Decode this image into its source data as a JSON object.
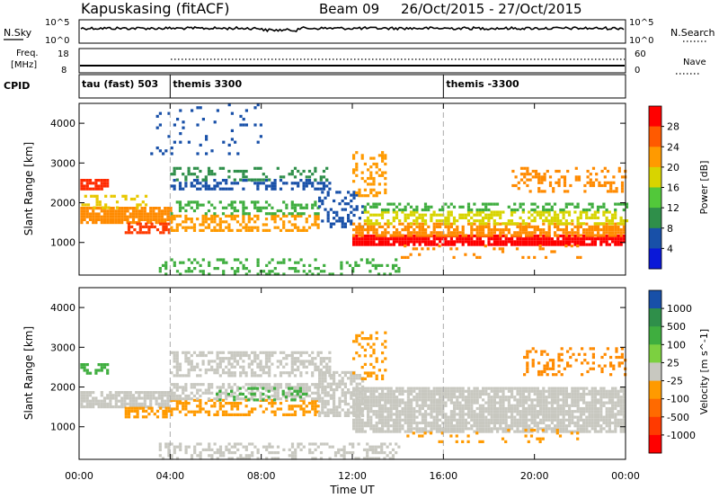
{
  "header": {
    "station": "Kapuskasing (fitACF)",
    "beam": "Beam 09",
    "dates": "26/Oct/2015 - 27/Oct/2015"
  },
  "noise_panel": {
    "left_label": "N.Sky",
    "right_label": "N.Search",
    "left_ticks": [
      "10^5",
      "10^0"
    ],
    "right_ticks": [
      "10^5",
      "10^0"
    ]
  },
  "freq_panel": {
    "left_label": "Freq.",
    "left_unit": "[MHz]",
    "left_ticks": [
      "18",
      "8"
    ],
    "right_label": "Nave",
    "right_ticks": [
      "60",
      "0"
    ]
  },
  "cpid_panel": {
    "label": "CPID",
    "segments": [
      {
        "label": "tau (fast) 503",
        "start_hour": 0
      },
      {
        "label": "themis 3300",
        "start_hour": 4
      },
      {
        "label": "themis -3300",
        "start_hour": 16
      }
    ]
  },
  "chart_data": {
    "type": "heatmap",
    "x_axis": {
      "label": "Time UT",
      "range_hours": [
        0,
        24
      ],
      "ticks": [
        {
          "hour": 0,
          "label": "00:00"
        },
        {
          "hour": 4,
          "label": "04:00"
        },
        {
          "hour": 8,
          "label": "08:00"
        },
        {
          "hour": 12,
          "label": "12:00"
        },
        {
          "hour": 16,
          "label": "16:00"
        },
        {
          "hour": 20,
          "label": "20:00"
        },
        {
          "hour": 24,
          "label": "00:00"
        }
      ]
    },
    "dashed_marks_hours": [
      4,
      16
    ],
    "panels": [
      {
        "id": "power",
        "ylabel": "Slant Range [km]",
        "yrange_km": [
          180,
          4500
        ],
        "yticks": [
          1000,
          2000,
          3000,
          4000
        ],
        "colorbar": {
          "title": "Power [dB]",
          "labels": [
            "28",
            "24",
            "20",
            "16",
            "12",
            "8",
            "4"
          ],
          "colors": [
            "#ff0000",
            "#ff5a00",
            "#ff9a00",
            "#d8d400",
            "#52c83a",
            "#2f8f4a",
            "#1850a8",
            "#0a18d8"
          ]
        },
        "bands": [
          {
            "h0": 0.05,
            "h1": 4.0,
            "r0": 1500,
            "r1": 1900,
            "color": "#ff8a00",
            "density": 0.85
          },
          {
            "h0": 0.05,
            "h1": 1.3,
            "r0": 2350,
            "r1": 2600,
            "color": "#ff2a00",
            "density": 0.8
          },
          {
            "h0": 0.1,
            "h1": 3.0,
            "r0": 1900,
            "r1": 2200,
            "color": "#e8c800",
            "density": 0.35
          },
          {
            "h0": 2.0,
            "h1": 4.0,
            "r0": 1250,
            "r1": 1500,
            "color": "#ff3a00",
            "density": 0.7
          },
          {
            "h0": 4.0,
            "h1": 10.5,
            "r0": 1300,
            "r1": 1700,
            "color": "#ff9a00",
            "density": 0.5
          },
          {
            "h0": 4.0,
            "h1": 10.5,
            "r0": 1700,
            "r1": 2050,
            "color": "#3fae3f",
            "density": 0.35
          },
          {
            "h0": 4.0,
            "h1": 11.0,
            "r0": 2350,
            "r1": 2600,
            "color": "#1850a8",
            "density": 0.45
          },
          {
            "h0": 4.0,
            "h1": 11.0,
            "r0": 2600,
            "r1": 2900,
            "color": "#2f8f4a",
            "density": 0.25
          },
          {
            "h0": 10.5,
            "h1": 12.5,
            "r0": 1400,
            "r1": 2300,
            "color": "#1850a8",
            "density": 0.35
          },
          {
            "h0": 12.0,
            "h1": 24.0,
            "r0": 950,
            "r1": 1200,
            "color": "#ff0000",
            "density": 0.9
          },
          {
            "h0": 12.0,
            "h1": 24.0,
            "r0": 1200,
            "r1": 1500,
            "color": "#ff8a00",
            "density": 0.7
          },
          {
            "h0": 12.5,
            "h1": 24.0,
            "r0": 1500,
            "r1": 1800,
            "color": "#d8d400",
            "density": 0.5
          },
          {
            "h0": 12.5,
            "h1": 24.0,
            "r0": 1800,
            "r1": 2000,
            "color": "#3fae3f",
            "density": 0.4
          },
          {
            "h0": 12.0,
            "h1": 13.5,
            "r0": 2200,
            "r1": 3300,
            "color": "#ff9a00",
            "density": 0.35
          },
          {
            "h0": 19.0,
            "h1": 24.0,
            "r0": 2300,
            "r1": 2900,
            "color": "#ff8a00",
            "density": 0.25
          },
          {
            "h0": 3.5,
            "h1": 14.0,
            "r0": 200,
            "r1": 600,
            "color": "#3fae3f",
            "density": 0.25
          },
          {
            "h0": 14.0,
            "h1": 22.0,
            "r0": 600,
            "r1": 950,
            "color": "#ff8a00",
            "density": 0.1
          },
          {
            "h0": 3.0,
            "h1": 8.0,
            "r0": 3200,
            "r1": 4500,
            "color": "#1850a8",
            "density": 0.06
          }
        ]
      },
      {
        "id": "velocity",
        "ylabel": "Slant Range [km]",
        "yrange_km": [
          180,
          4500
        ],
        "yticks": [
          1000,
          2000,
          3000,
          4000
        ],
        "colorbar": {
          "title": "Velocity [m s^-1]",
          "labels": [
            "1000",
            "500",
            "100",
            "25",
            "-25",
            "-100",
            "-500",
            "-1000"
          ],
          "colors": [
            "#1850a8",
            "#2f8f4a",
            "#3fae3f",
            "#7cd040",
            "#c8c8c0",
            "#ff9a00",
            "#ff6a00",
            "#ff3a00",
            "#ff0000"
          ]
        },
        "bands": [
          {
            "h0": 0.05,
            "h1": 4.0,
            "r0": 1500,
            "r1": 1900,
            "color": "#c8c8c0",
            "density": 0.85
          },
          {
            "h0": 0.05,
            "h1": 1.3,
            "r0": 2350,
            "r1": 2600,
            "color": "#3fae3f",
            "density": 0.6
          },
          {
            "h0": 2.0,
            "h1": 4.0,
            "r0": 1250,
            "r1": 1500,
            "color": "#ff9a00",
            "density": 0.6
          },
          {
            "h0": 4.0,
            "h1": 10.5,
            "r0": 1300,
            "r1": 1700,
            "color": "#ff9a00",
            "density": 0.4
          },
          {
            "h0": 4.0,
            "h1": 10.5,
            "r0": 1700,
            "r1": 2100,
            "color": "#c8c8c0",
            "density": 0.6
          },
          {
            "h0": 4.0,
            "h1": 11.0,
            "r0": 2300,
            "r1": 2900,
            "color": "#c8c8c0",
            "density": 0.5
          },
          {
            "h0": 10.5,
            "h1": 12.5,
            "r0": 1300,
            "r1": 2400,
            "color": "#c8c8c0",
            "density": 0.6
          },
          {
            "h0": 12.0,
            "h1": 24.0,
            "r0": 850,
            "r1": 2000,
            "color": "#c8c8c0",
            "density": 0.85
          },
          {
            "h0": 12.0,
            "h1": 13.5,
            "r0": 2200,
            "r1": 3400,
            "color": "#ff9a00",
            "density": 0.3
          },
          {
            "h0": 19.5,
            "h1": 24.0,
            "r0": 2300,
            "r1": 3000,
            "color": "#ff8a00",
            "density": 0.25
          },
          {
            "h0": 3.5,
            "h1": 14.0,
            "r0": 200,
            "r1": 600,
            "color": "#c8c8c0",
            "density": 0.4
          },
          {
            "h0": 14.0,
            "h1": 22.0,
            "r0": 600,
            "r1": 950,
            "color": "#ff9a00",
            "density": 0.1
          },
          {
            "h0": 6.0,
            "h1": 10.0,
            "r0": 1700,
            "r1": 2000,
            "color": "#3fae3f",
            "density": 0.3
          }
        ]
      }
    ]
  }
}
